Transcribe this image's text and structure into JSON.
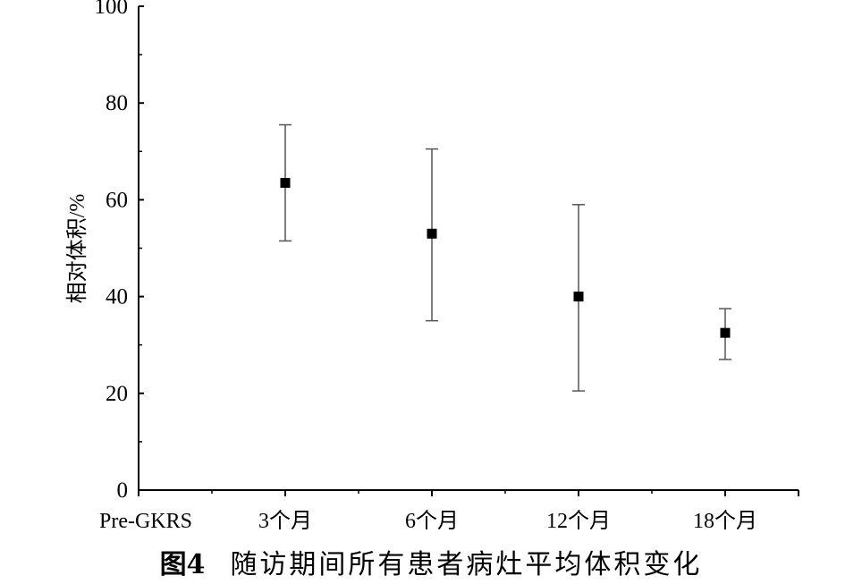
{
  "figure": {
    "label": "图4",
    "caption": "随访期间所有患者病灶平均体积变化"
  },
  "chart_data": {
    "type": "scatter",
    "title": "",
    "xlabel": "",
    "ylabel": "相对体积/%",
    "ylim": [
      0,
      100
    ],
    "y_ticks": [
      0,
      20,
      40,
      60,
      80,
      100
    ],
    "categories": [
      "Pre-GKRS",
      "3个月",
      "6个月",
      "12个月",
      "18个月"
    ],
    "points": [
      {
        "category": "3个月",
        "mean": 63.5,
        "upper": 75.5,
        "lower": 51.5
      },
      {
        "category": "6个月",
        "mean": 53,
        "upper": 70.5,
        "lower": 35
      },
      {
        "category": "12个月",
        "mean": 40,
        "upper": 59,
        "lower": 20.5
      },
      {
        "category": "18个月",
        "mean": 32.5,
        "upper": 37.5,
        "lower": 27
      }
    ],
    "marker": "square",
    "marker_color": "#000000",
    "errorbar_color": "#555555",
    "grid": false
  }
}
